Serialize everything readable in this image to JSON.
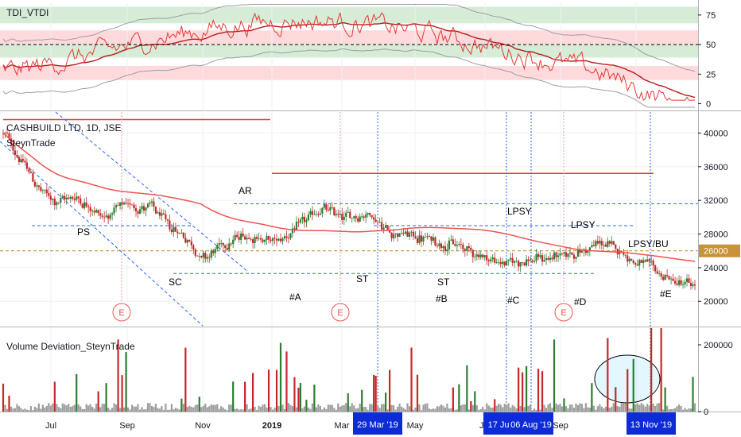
{
  "panels": {
    "indicator_title": "TDI_VTDI",
    "price_title": "CASHBUILD LTD, 1D, JSE",
    "price_author": "SteynTrade",
    "volume_title": "Volume Deviation_SteynTrade"
  },
  "colors": {
    "up": "#2e7d32",
    "down": "#c62828",
    "ma": "#ef5350",
    "band": "#9e9e9e",
    "guide": "#2962ff",
    "price_tag": "#c8913a"
  },
  "chart_data": {
    "type": "candlestick",
    "x_axis_labels": [
      "Jul",
      "Sep",
      "Nov",
      "2019",
      "Mar",
      "May",
      "Jul",
      "Sep"
    ],
    "indicator": {
      "ylim": [
        -5,
        85
      ],
      "ticks": [
        "75",
        "50",
        "25",
        "0"
      ],
      "tick_values": [
        75,
        50,
        25,
        0
      ],
      "bands": [
        {
          "from": 68,
          "to": 82,
          "color": "#c8e6c9"
        },
        {
          "from": 50,
          "to": 62,
          "color": "#ffcdd2"
        },
        {
          "from": 39,
          "to": 50,
          "color": "#c8e6c9"
        },
        {
          "from": 20,
          "to": 32,
          "color": "#ffcdd2"
        }
      ],
      "midline": 50
    },
    "price": {
      "ylim": [
        17000,
        42500
      ],
      "ticks": [
        "40000",
        "36000",
        "32000",
        "28000",
        "24000",
        "20000"
      ],
      "tick_values": [
        40000,
        36000,
        32000,
        28000,
        24000,
        20000
      ],
      "last_price_label": "26000",
      "last_price": 26000,
      "annotations": [
        "PS",
        "SC",
        "AR",
        "ST",
        "ST",
        "LPSY",
        "LPSY",
        "LPSY/BU",
        "#A",
        "#B",
        "#C",
        "#D",
        "#E"
      ],
      "event_markers": [
        "E",
        "E",
        "E"
      ]
    },
    "volume": {
      "ylim": [
        0,
        250000
      ],
      "ticks": [
        "200000",
        "0"
      ],
      "tick_values": [
        200000,
        0
      ]
    },
    "date_tags": [
      "29 Mar '19",
      "17 Jul '19",
      "06 Aug '19",
      "13 Nov '19"
    ]
  }
}
